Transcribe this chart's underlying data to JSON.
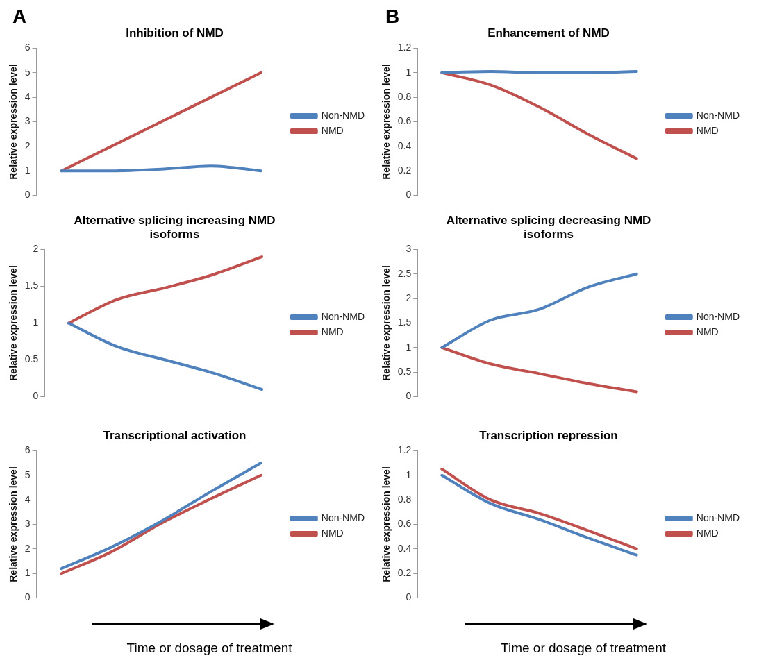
{
  "chart_data": [
    {
      "type": "line",
      "title": "Inhibition of NMD",
      "ylabel": "Relative expression level",
      "annotations": [
        "A"
      ],
      "categories": [
        null,
        null,
        null,
        null,
        null
      ],
      "ylim": [
        0,
        6
      ],
      "yticks": [
        0,
        1,
        2,
        3,
        4,
        5,
        6
      ],
      "legend": "right",
      "marker": "none",
      "tick_labels": "y",
      "series": [
        {
          "name": "Non-NMD",
          "color": "#4f81bd",
          "values": [
            1,
            1,
            1.07,
            1.2,
            1
          ]
        },
        {
          "name": "NMD",
          "color": "#c0504d",
          "values": [
            1,
            2,
            3,
            4,
            5
          ]
        }
      ]
    },
    {
      "type": "line",
      "title": "Enhancement of NMD",
      "ylabel": "Relative expression level",
      "annotations": [
        "B"
      ],
      "categories": [
        null,
        null,
        null,
        null,
        null
      ],
      "ylim": [
        0,
        1.2
      ],
      "yticks": [
        0,
        0.2,
        0.4,
        0.6,
        0.8,
        1,
        1.2
      ],
      "legend": "right",
      "marker": "none",
      "tick_labels": "y",
      "series": [
        {
          "name": "Non-NMD",
          "color": "#4f81bd",
          "values": [
            1,
            1.01,
            1,
            1,
            1.01
          ]
        },
        {
          "name": "NMD",
          "color": "#c0504d",
          "values": [
            1,
            0.9,
            0.72,
            0.5,
            0.3
          ]
        }
      ]
    },
    {
      "type": "line",
      "title": "Alternative splicing increasing NMD isoforms",
      "ylabel": "Relative expression level",
      "categories": [
        null,
        null,
        null,
        null,
        null
      ],
      "ylim": [
        0,
        2
      ],
      "yticks": [
        0,
        0.5,
        1,
        1.5,
        2
      ],
      "legend": "right",
      "marker": "none",
      "tick_labels": "y",
      "series": [
        {
          "name": "Non-NMD",
          "color": "#4f81bd",
          "values": [
            1,
            0.68,
            0.5,
            0.32,
            0.1
          ]
        },
        {
          "name": "NMD",
          "color": "#c0504d",
          "values": [
            1,
            1.32,
            1.48,
            1.66,
            1.9
          ]
        }
      ]
    },
    {
      "type": "line",
      "title": "Alternative splicing decreasing NMD isoforms",
      "ylabel": "Relative expression level",
      "categories": [
        null,
        null,
        null,
        null,
        null
      ],
      "ylim": [
        0,
        3
      ],
      "yticks": [
        0,
        0.5,
        1,
        1.5,
        2,
        2.5,
        3
      ],
      "legend": "right",
      "marker": "none",
      "tick_labels": "y",
      "series": [
        {
          "name": "Non-NMD",
          "color": "#4f81bd",
          "values": [
            1,
            1.56,
            1.78,
            2.23,
            2.5
          ]
        },
        {
          "name": "NMD",
          "color": "#c0504d",
          "values": [
            1,
            0.67,
            0.47,
            0.27,
            0.1
          ]
        }
      ]
    },
    {
      "type": "line",
      "title": "Transcriptional activation",
      "ylabel": "Relative expression level",
      "xlabel": "Time or dosage of treatment",
      "categories": [
        null,
        null,
        null,
        null,
        null
      ],
      "ylim": [
        0,
        6
      ],
      "yticks": [
        0,
        1,
        2,
        3,
        4,
        5,
        6
      ],
      "legend": "right",
      "marker": "none",
      "tick_labels": "y",
      "series": [
        {
          "name": "Non-NMD",
          "color": "#4f81bd",
          "values": [
            1.2,
            2.07,
            3.13,
            4.34,
            5.5
          ]
        },
        {
          "name": "NMD",
          "color": "#c0504d",
          "values": [
            1,
            1.88,
            3.04,
            4.05,
            5
          ]
        }
      ]
    },
    {
      "type": "line",
      "title": "Transcription repression",
      "ylabel": "Relative expression level",
      "xlabel": "Time or dosage of treatment",
      "categories": [
        null,
        null,
        null,
        null,
        null
      ],
      "ylim": [
        0,
        1.2
      ],
      "yticks": [
        0,
        0.2,
        0.4,
        0.6,
        0.8,
        1,
        1.2
      ],
      "legend": "right",
      "marker": "none",
      "tick_labels": "y",
      "series": [
        {
          "name": "Non-NMD",
          "color": "#4f81bd",
          "values": [
            1,
            0.77,
            0.64,
            0.49,
            0.35
          ]
        },
        {
          "name": "NMD",
          "color": "#c0504d",
          "values": [
            1.05,
            0.8,
            0.69,
            0.55,
            0.4
          ]
        }
      ]
    }
  ]
}
